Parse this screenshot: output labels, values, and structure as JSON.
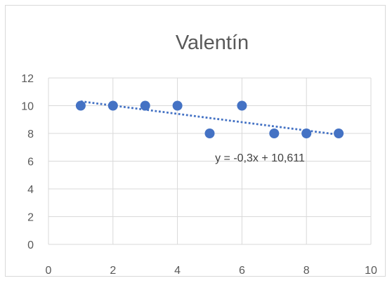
{
  "chart_data": {
    "type": "scatter",
    "title": "Valentín",
    "xlabel": "",
    "ylabel": "",
    "xlim": [
      0,
      10
    ],
    "ylim": [
      0,
      12
    ],
    "x_ticks": [
      0,
      2,
      4,
      6,
      8,
      10
    ],
    "y_ticks": [
      0,
      2,
      4,
      6,
      8,
      10,
      12
    ],
    "grid": true,
    "legend": "none",
    "series": [
      {
        "color": "#4472c4",
        "x": [
          1,
          2,
          3,
          4,
          5,
          6,
          7,
          8,
          9
        ],
        "y": [
          10,
          10,
          10,
          10,
          8,
          10,
          8,
          8,
          8
        ]
      }
    ],
    "trendline": {
      "type": "linear",
      "slope": -0.3,
      "intercept": 10.611,
      "x_range": [
        1,
        9
      ],
      "color": "#4472c4",
      "label": "y = -0,3x + 10,611"
    }
  }
}
